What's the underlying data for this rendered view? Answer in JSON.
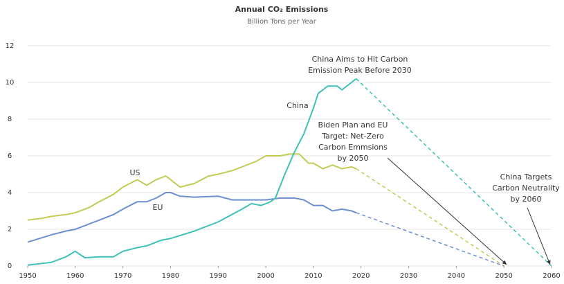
{
  "chart_data": {
    "type": "line",
    "title": "Annual CO₂ Emissions",
    "subtitle": "Billion Tons per Year",
    "xlim": [
      1950,
      2060
    ],
    "xticks": [
      1950,
      1960,
      1970,
      1980,
      1990,
      2000,
      2010,
      2020,
      2030,
      2040,
      2050,
      2060
    ],
    "ylim": [
      0,
      12
    ],
    "yticks": [
      0,
      2,
      4,
      6,
      8,
      10,
      12
    ],
    "grid": true,
    "series": [
      {
        "name": "US",
        "color": "#c2cc55",
        "x": [
          1950,
          1953,
          1955,
          1958,
          1960,
          1963,
          1965,
          1968,
          1970,
          1973,
          1975,
          1977,
          1979,
          1980,
          1982,
          1985,
          1988,
          1990,
          1993,
          1995,
          1998,
          2000,
          2003,
          2005,
          2007,
          2009,
          2010,
          2012,
          2014,
          2016,
          2018,
          2019
        ],
        "values": [
          2.5,
          2.6,
          2.7,
          2.8,
          2.9,
          3.2,
          3.5,
          3.9,
          4.3,
          4.7,
          4.4,
          4.7,
          4.9,
          4.7,
          4.3,
          4.5,
          4.9,
          5.0,
          5.2,
          5.4,
          5.7,
          6.0,
          6.0,
          6.1,
          6.1,
          5.6,
          5.6,
          5.3,
          5.5,
          5.3,
          5.4,
          5.3
        ],
        "projection": {
          "x": [
            2019,
            2050
          ],
          "values": [
            5.3,
            0
          ]
        }
      },
      {
        "name": "EU",
        "color": "#6b8fd0",
        "x": [
          1950,
          1955,
          1958,
          1960,
          1963,
          1965,
          1968,
          1970,
          1973,
          1975,
          1977,
          1979,
          1980,
          1982,
          1985,
          1990,
          1993,
          1995,
          2000,
          2003,
          2006,
          2008,
          2010,
          2012,
          2014,
          2016,
          2018,
          2019
        ],
        "values": [
          1.3,
          1.7,
          1.9,
          2.0,
          2.3,
          2.5,
          2.8,
          3.1,
          3.5,
          3.5,
          3.7,
          4.0,
          4.0,
          3.8,
          3.75,
          3.8,
          3.6,
          3.6,
          3.6,
          3.7,
          3.7,
          3.6,
          3.3,
          3.3,
          3.0,
          3.1,
          3.0,
          2.9
        ],
        "projection": {
          "x": [
            2019,
            2050
          ],
          "values": [
            2.9,
            0
          ]
        }
      },
      {
        "name": "China",
        "color": "#3fc1b5",
        "x": [
          1950,
          1955,
          1958,
          1960,
          1962,
          1965,
          1968,
          1970,
          1973,
          1975,
          1978,
          1980,
          1985,
          1990,
          1995,
          1997,
          1999,
          2001,
          2002,
          2004,
          2006,
          2008,
          2010,
          2011,
          2013,
          2015,
          2016,
          2018,
          2019
        ],
        "values": [
          0.05,
          0.2,
          0.5,
          0.8,
          0.45,
          0.5,
          0.5,
          0.8,
          1.0,
          1.1,
          1.4,
          1.5,
          1.9,
          2.4,
          3.1,
          3.4,
          3.3,
          3.5,
          3.7,
          5.0,
          6.2,
          7.2,
          8.6,
          9.4,
          9.8,
          9.8,
          9.6,
          10.0,
          10.2
        ],
        "projection": {
          "x": [
            2019,
            2060
          ],
          "values": [
            10.2,
            0
          ]
        }
      }
    ],
    "annotations": [
      {
        "lines": [
          "China Aims to Hit Carbon",
          "Emission Peak Before 2030"
        ]
      },
      {
        "lines": [
          "Biden Plan and EU",
          "Target: Net-Zero",
          "Carbon Emmsions",
          "by 2050"
        ]
      },
      {
        "lines": [
          "China Targets",
          "Carbon Neutrality",
          "by 2060"
        ]
      }
    ]
  }
}
